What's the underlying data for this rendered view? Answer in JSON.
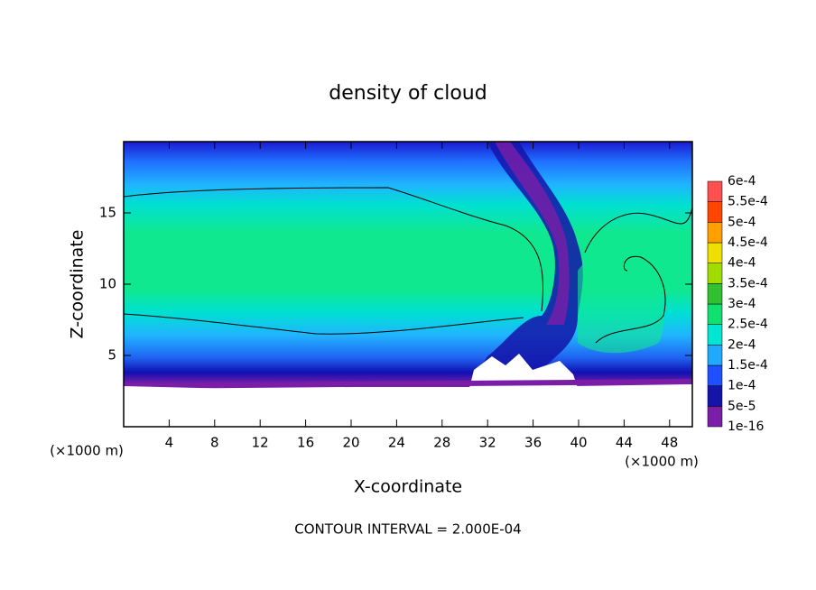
{
  "chart_data": {
    "type": "contour",
    "title": "density of cloud",
    "x_label": "X-coordinate",
    "y_label": "Z-coordinate",
    "x_unit": "(×1000 m)",
    "annotation": "CONTOUR INTERVAL = 2.000E-04",
    "xlim": [
      0,
      50
    ],
    "xticks": [
      4,
      8,
      12,
      16,
      20,
      24,
      28,
      32,
      36,
      40,
      44,
      48
    ],
    "ylim": [
      0,
      20
    ],
    "yticks": [
      5,
      10,
      15
    ],
    "colorbar": {
      "levels": [
        {
          "value": 1e-16,
          "label": "1e-16"
        },
        {
          "value": 5e-05,
          "label": "5e-5"
        },
        {
          "value": 0.0001,
          "label": "1e-4"
        },
        {
          "value": 0.00015,
          "label": "1.5e-4"
        },
        {
          "value": 0.0002,
          "label": "2e-4"
        },
        {
          "value": 0.00025,
          "label": "2.5e-4"
        },
        {
          "value": 0.0003,
          "label": "3e-4"
        },
        {
          "value": 0.00035,
          "label": "3.5e-4"
        },
        {
          "value": 0.0004,
          "label": "4e-4"
        },
        {
          "value": 0.00045,
          "label": "4.5e-4"
        },
        {
          "value": 0.0005,
          "label": "5e-4"
        },
        {
          "value": 0.00055,
          "label": "5.5e-4"
        },
        {
          "value": 0.0006,
          "label": "6e-4"
        }
      ],
      "colors": [
        "#7a1ea8",
        "#1414a8",
        "#1e50ff",
        "#1eaaff",
        "#00e6d2",
        "#10e070",
        "#30c030",
        "#a0dc00",
        "#f0e000",
        "#ffa000",
        "#ff4600",
        "#ff5050"
      ]
    }
  }
}
